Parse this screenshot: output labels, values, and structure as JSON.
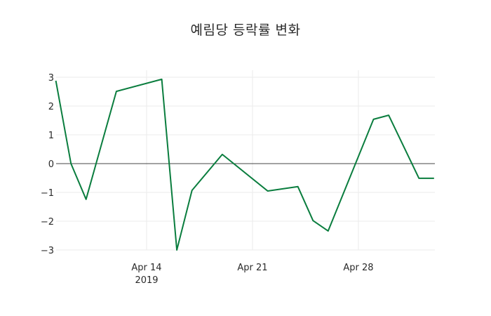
{
  "chart_data": {
    "type": "line",
    "title": "예림당 등락률 변화",
    "xlabel": "",
    "ylabel": "",
    "ylim": [
      -3,
      3
    ],
    "yticks": [
      3,
      2,
      1,
      0,
      -1,
      -2,
      -3
    ],
    "ytick_labels": [
      "3",
      "2",
      "1",
      "0",
      "−1",
      "−2",
      "−3"
    ],
    "xtick_labels": [
      {
        "date": "2019-04-14",
        "label": "Apr 14",
        "sub": "2019"
      },
      {
        "date": "2019-04-21",
        "label": "Apr 21",
        "sub": ""
      },
      {
        "date": "2019-04-28",
        "label": "Apr 28",
        "sub": ""
      }
    ],
    "grid": true,
    "zero_line": true,
    "line_color": "#0a7d3e",
    "x": [
      "2019-04-08",
      "2019-04-09",
      "2019-04-10",
      "2019-04-12",
      "2019-04-15",
      "2019-04-16",
      "2019-04-17",
      "2019-04-19",
      "2019-04-22",
      "2019-04-24",
      "2019-04-25",
      "2019-04-26",
      "2019-04-29",
      "2019-04-30",
      "2019-05-02",
      "2019-05-03"
    ],
    "series": [
      {
        "name": "등락률",
        "values": [
          2.88,
          0.0,
          -1.24,
          2.51,
          2.93,
          -3.0,
          -0.93,
          0.32,
          -0.95,
          -0.8,
          -1.98,
          -2.34,
          1.54,
          1.68,
          -0.51,
          -0.51
        ]
      }
    ]
  }
}
